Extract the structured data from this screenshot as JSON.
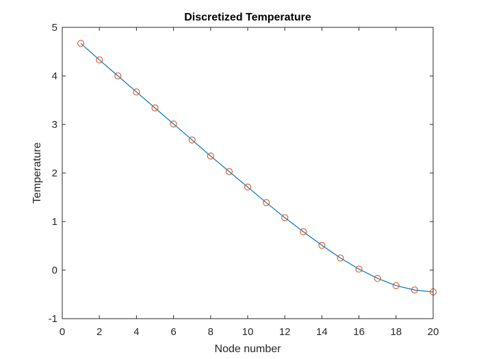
{
  "chart_data": {
    "type": "line",
    "title": "Discretized Temperature",
    "xlabel": "Node number",
    "ylabel": "Temperature",
    "xlim": [
      0,
      20
    ],
    "ylim": [
      -1,
      5
    ],
    "xticks": [
      0,
      2,
      4,
      6,
      8,
      10,
      12,
      14,
      16,
      18,
      20
    ],
    "yticks": [
      -1,
      0,
      1,
      2,
      3,
      4,
      5
    ],
    "grid": false,
    "line_color": "#0072BD",
    "marker_color": "#D95319",
    "x": [
      1,
      2,
      3,
      4,
      5,
      6,
      7,
      8,
      9,
      10,
      11,
      12,
      13,
      14,
      15,
      16,
      17,
      18,
      19,
      20
    ],
    "series": [
      {
        "values": [
          4.67,
          4.33,
          4.0,
          3.67,
          3.34,
          3.01,
          2.68,
          2.35,
          2.03,
          1.71,
          1.39,
          1.08,
          0.79,
          0.51,
          0.25,
          0.02,
          -0.17,
          -0.32,
          -0.41,
          -0.45
        ],
        "style": "line"
      },
      {
        "values": [
          4.67,
          4.33,
          4.0,
          3.67,
          3.34,
          3.01,
          2.68,
          2.35,
          2.03,
          1.71,
          1.39,
          1.08,
          0.79,
          0.51,
          0.25,
          0.02,
          -0.17,
          -0.32,
          -0.41,
          -0.45
        ],
        "style": "marker-circle"
      }
    ]
  }
}
